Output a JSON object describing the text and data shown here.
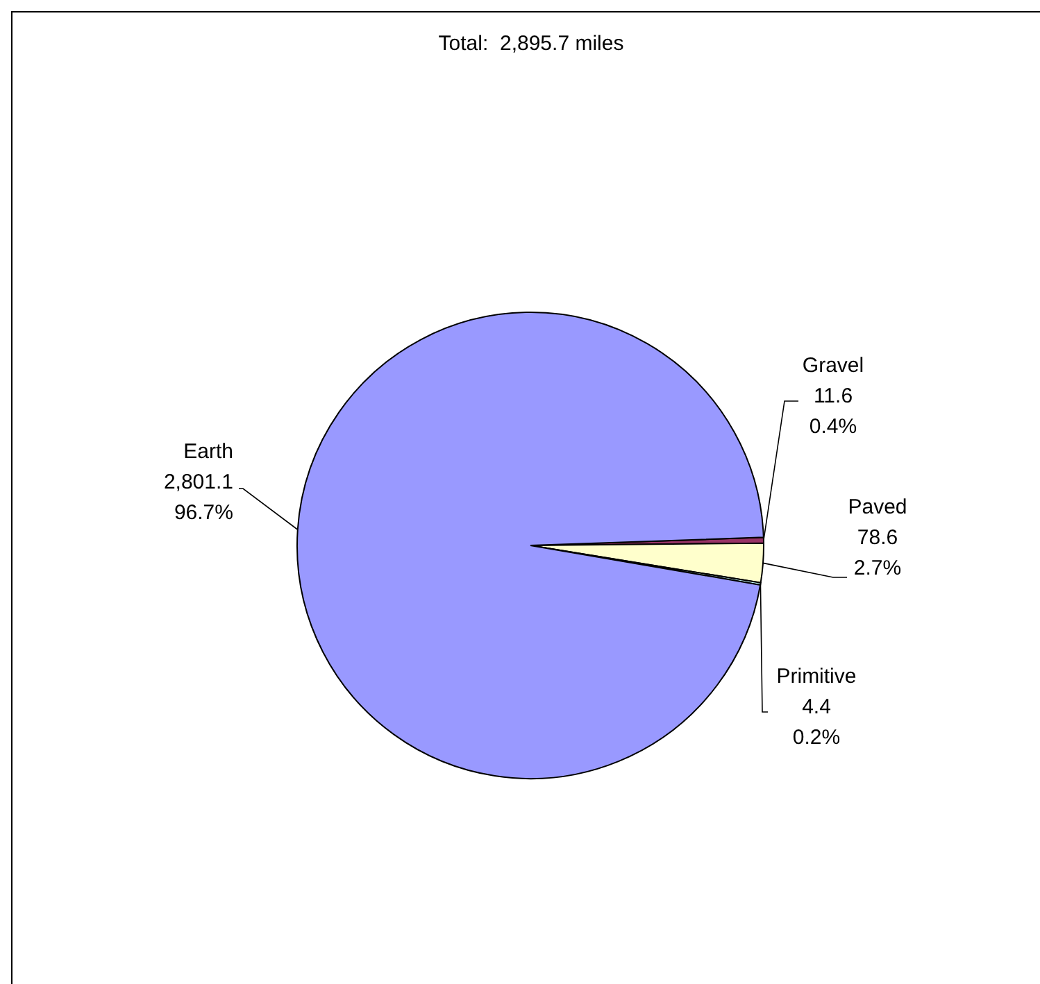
{
  "chart_data": {
    "type": "pie",
    "title": "Total:  2,895.7 miles",
    "categories": [
      "Gravel",
      "Paved",
      "Primitive",
      "Earth"
    ],
    "values": [
      11.6,
      78.6,
      4.4,
      2801.1
    ],
    "colors": [
      "#993366",
      "#ffffcc",
      "#ccffff",
      "#9999ff"
    ],
    "value_labels": [
      "11.6\n0.4%",
      "78.6\n2.7%",
      "4.4\n0.2%",
      "2,801.1\n96.7%"
    ]
  }
}
